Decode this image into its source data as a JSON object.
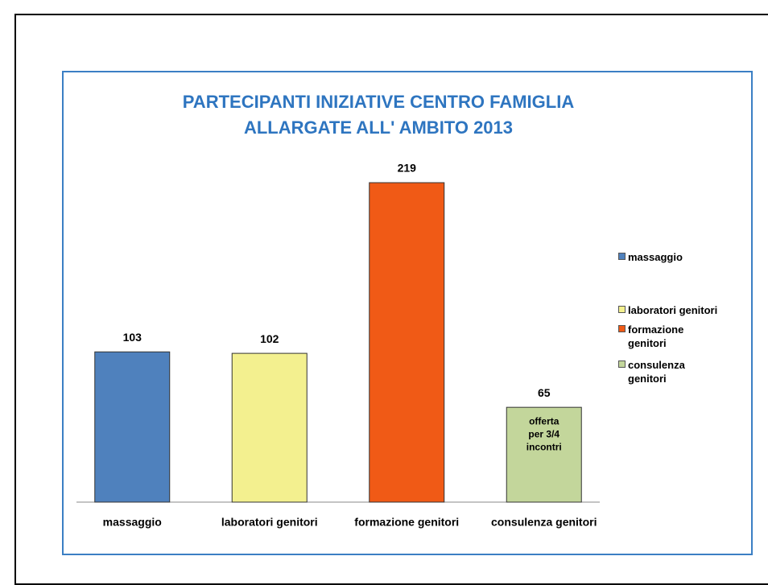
{
  "chart_data": {
    "type": "bar",
    "title": [
      "PARTECIPANTI INIZIATIVE CENTRO FAMIGLIA",
      "ALLARGATE ALL' AMBITO 2013"
    ],
    "categories": [
      "massaggio",
      "laboratori genitori",
      "formazione genitori",
      "consulenza genitori"
    ],
    "values": [
      103,
      102,
      219,
      65
    ],
    "colors": [
      "#4f81bd",
      "#f3f08f",
      "#f05a16",
      "#c3d69b"
    ],
    "annotation": [
      "offerta",
      "per 3/4",
      "incontri"
    ],
    "legend": "right"
  }
}
